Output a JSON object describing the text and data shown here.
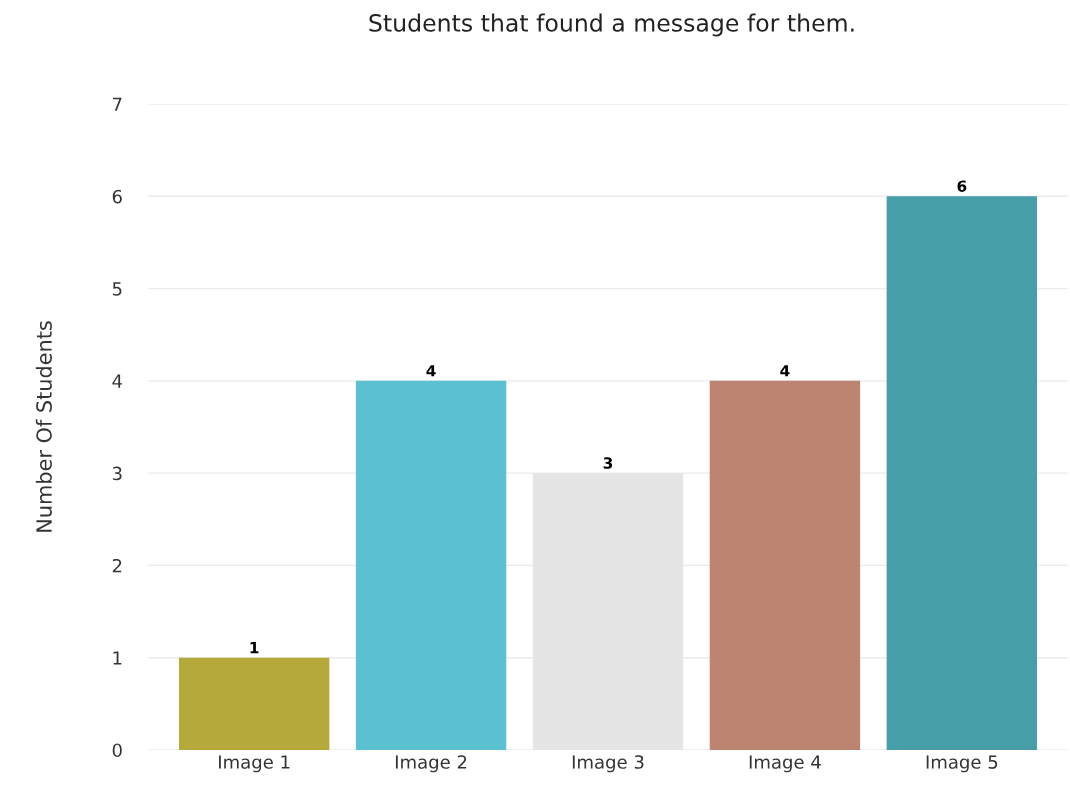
{
  "chart_data": {
    "type": "bar",
    "title": "Students that found a message for them.",
    "ylabel": "Number Of Students",
    "categories": [
      "Image 1",
      "Image 2",
      "Image 3",
      "Image 4",
      "Image 5"
    ],
    "values": [
      1,
      4,
      3,
      4,
      6
    ],
    "colors": [
      "#b5a93b",
      "#5bc1d0",
      "#e5e5e5",
      "#bd8472",
      "#469ea8"
    ],
    "ylim": [
      0,
      7
    ],
    "yticks": [
      0,
      1,
      2,
      3,
      4,
      5,
      6,
      7
    ],
    "grid": "y",
    "data_labels": true
  }
}
